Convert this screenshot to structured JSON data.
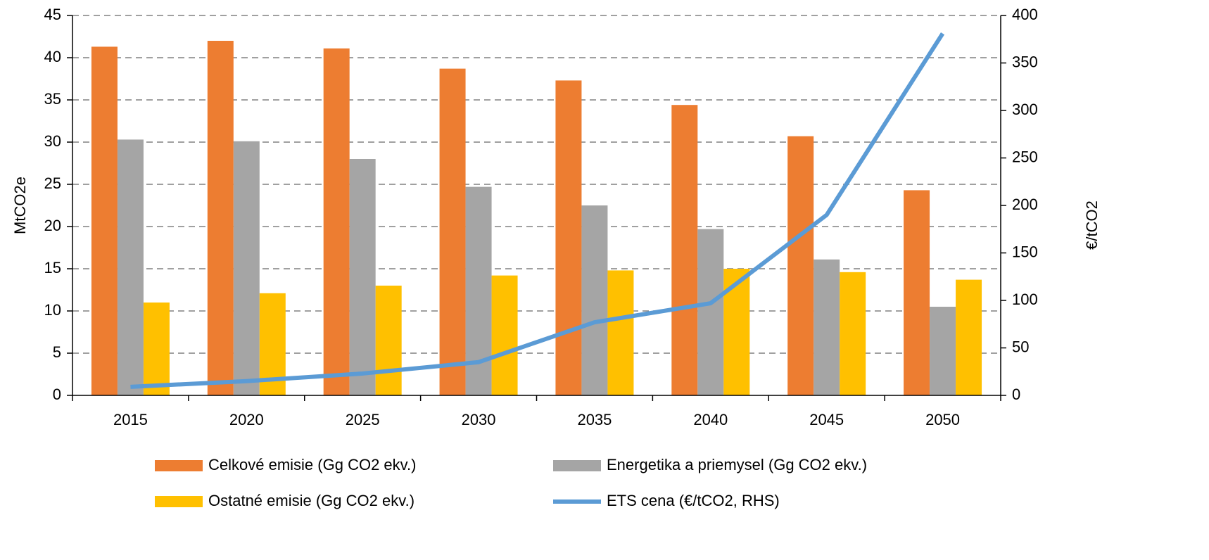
{
  "chart_data": {
    "type": "bar",
    "ylabel": "MtCO2e",
    "y2label": "€/tCO2",
    "categories": [
      "2015",
      "2020",
      "2025",
      "2030",
      "2035",
      "2040",
      "2045",
      "2050"
    ],
    "series": [
      {
        "name": "Celkové emisie (Gg CO2 ekv.)",
        "color": "#ed7d31",
        "values": [
          41.3,
          42.0,
          41.1,
          38.7,
          37.3,
          34.4,
          30.7,
          24.3
        ]
      },
      {
        "name": "Energetika a priemysel (Gg CO2 ekv.)",
        "color": "#a5a5a5",
        "values": [
          30.3,
          30.1,
          28.0,
          24.7,
          22.5,
          19.7,
          16.1,
          10.5
        ]
      },
      {
        "name": "Ostatné emisie (Gg CO2 ekv.)",
        "color": "#ffc000",
        "values": [
          11.0,
          12.1,
          13.0,
          14.2,
          14.8,
          15.0,
          14.6,
          13.7
        ]
      },
      {
        "name": "ETS cena (€/tCO2, RHS)",
        "color": "#5b9bd5",
        "type": "line",
        "axis": "y2",
        "values": [
          9,
          15,
          23,
          35,
          77,
          97,
          190,
          381
        ]
      }
    ],
    "ylim": [
      0,
      45
    ],
    "yticks": [
      0,
      5,
      10,
      15,
      20,
      25,
      30,
      35,
      40,
      45
    ],
    "y2lim": [
      0,
      400
    ],
    "y2ticks": [
      0,
      50,
      100,
      150,
      200,
      250,
      300,
      350,
      400
    ],
    "grid": true
  }
}
